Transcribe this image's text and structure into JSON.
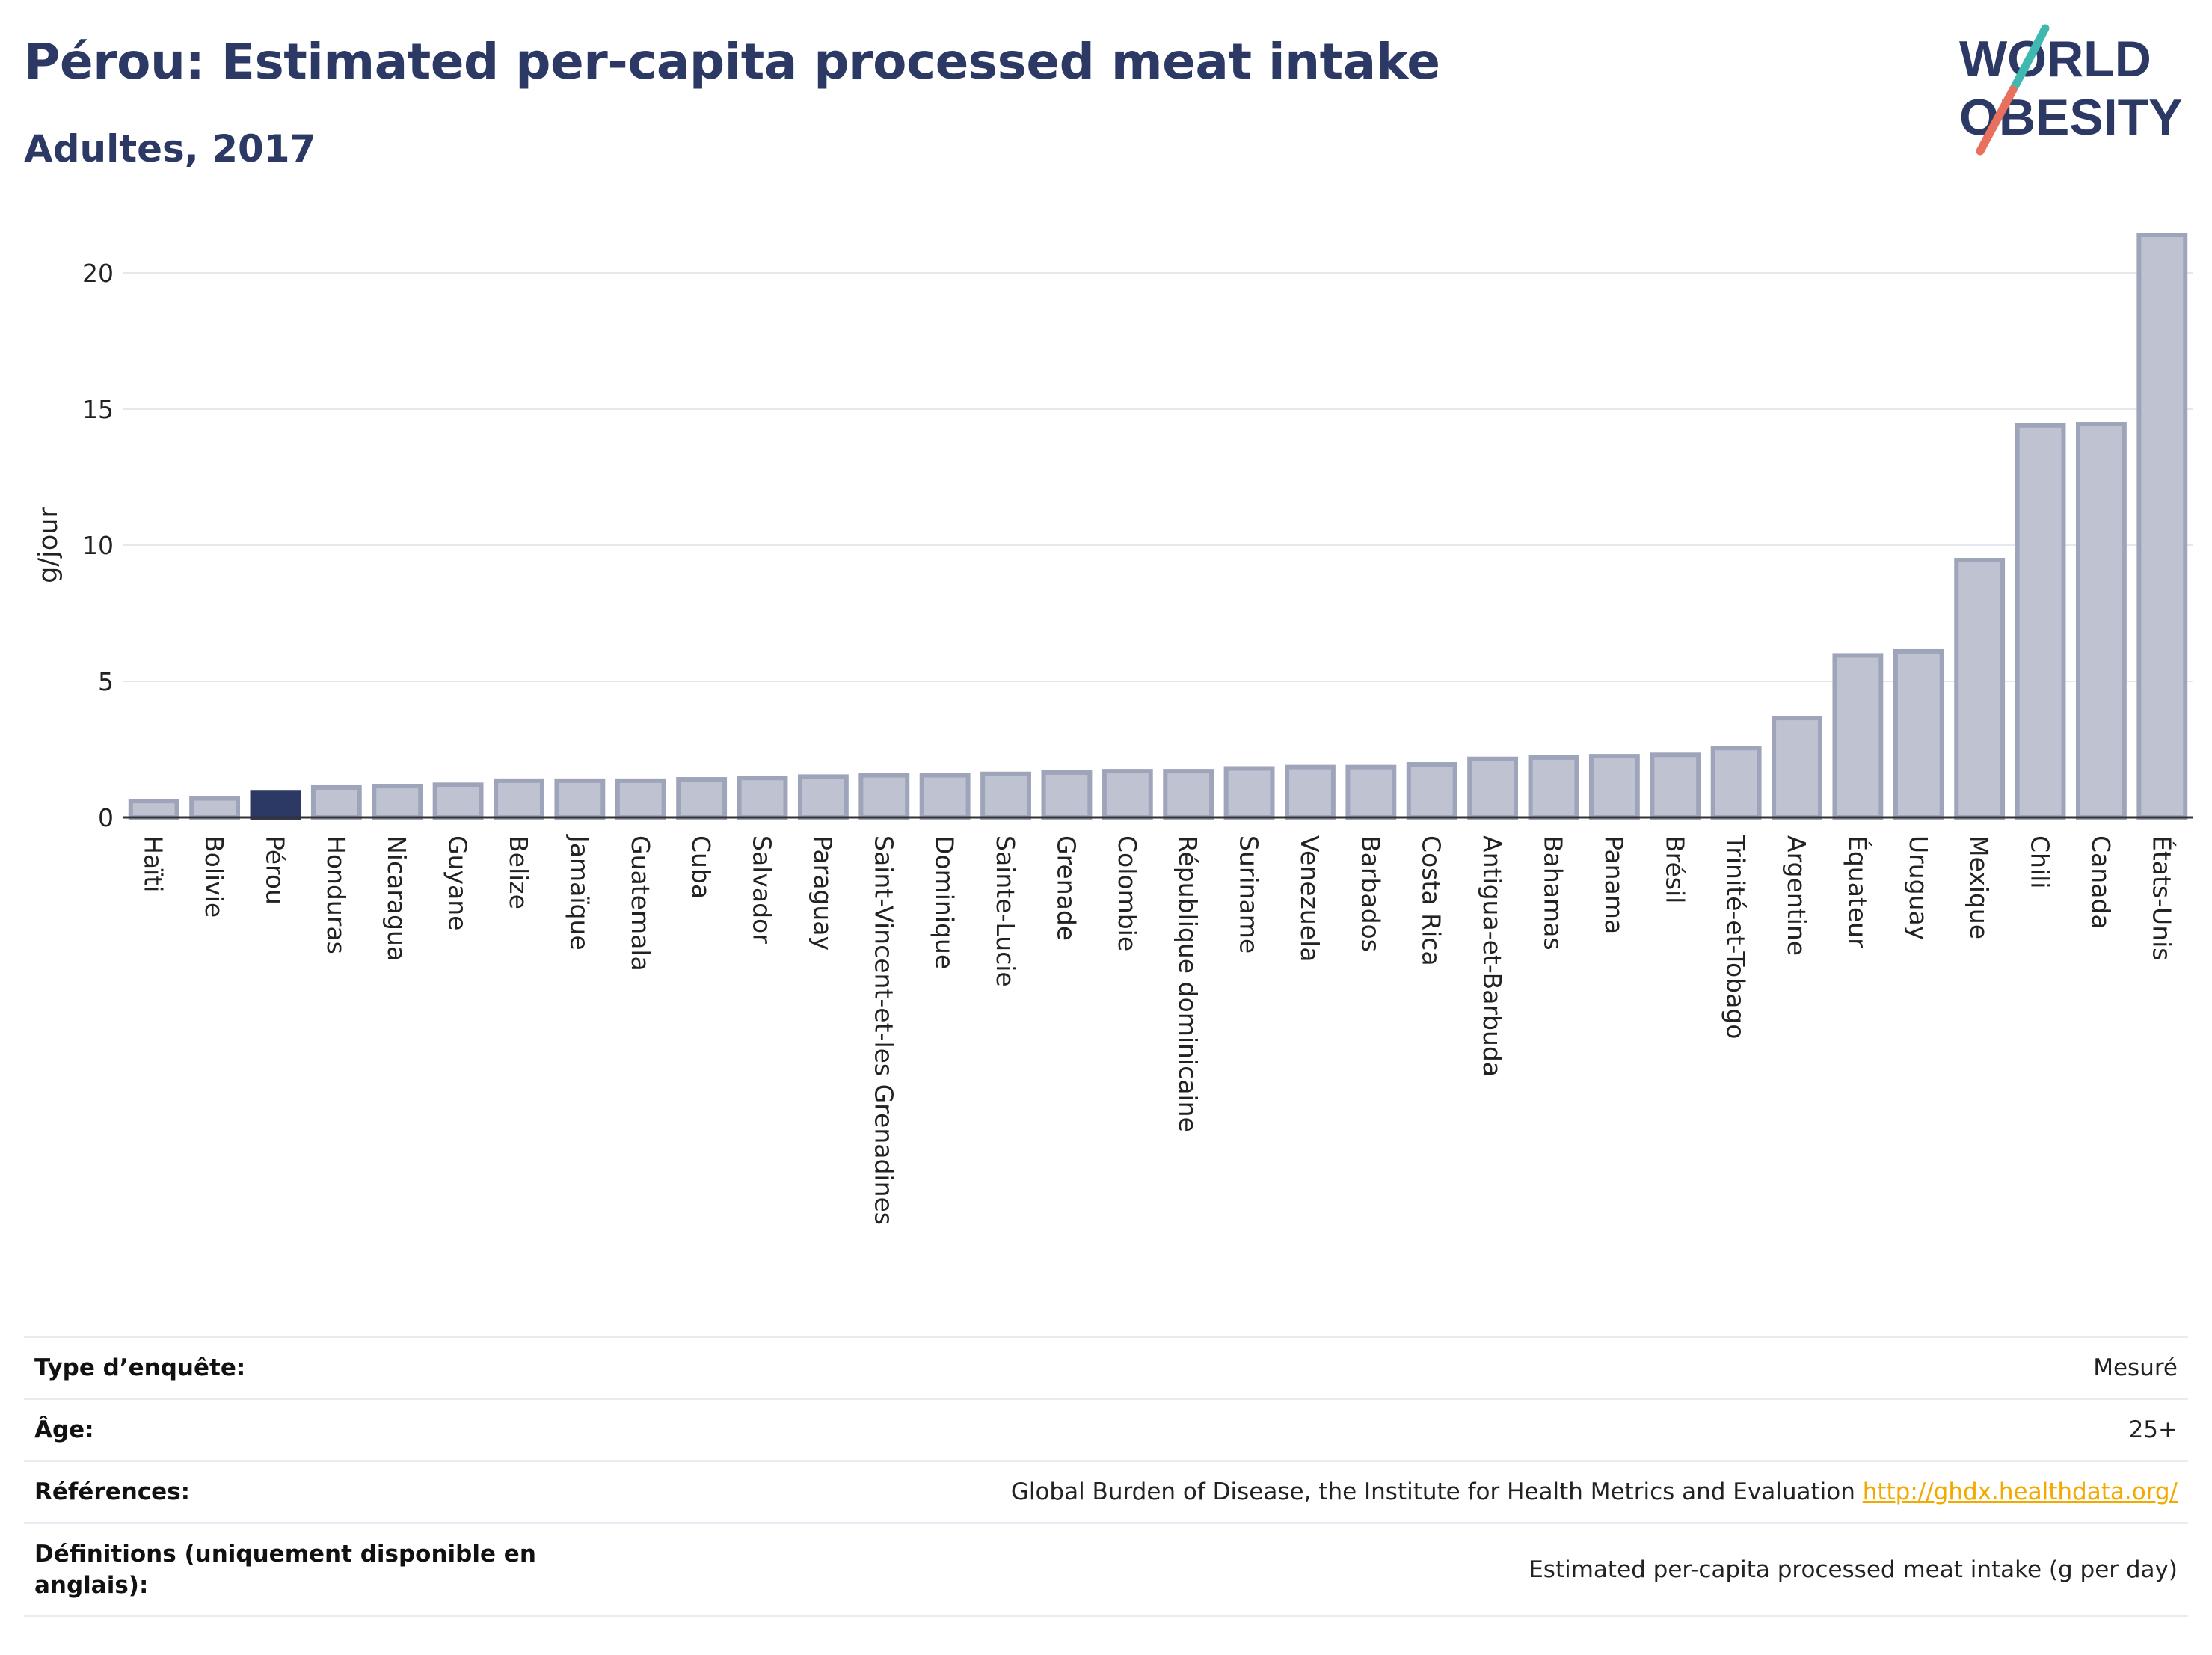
{
  "header": {
    "title": "Pérou: Estimated per-capita processed meat intake",
    "subtitle": "Adultes, 2017"
  },
  "logo": {
    "line1": "WORLD",
    "line2": "OBESITY"
  },
  "colors": {
    "title": "#2b3964",
    "bar": "#bfc3d1",
    "bar_stroke": "#9ea4ba",
    "highlight": "#2b3964",
    "grid": "#e6e8ee",
    "link": "#f2a900"
  },
  "chart_data": {
    "type": "bar",
    "title": "Pérou: Estimated per-capita processed meat intake",
    "subtitle": "Adultes, 2017",
    "xlabel": "",
    "ylabel": "g/jour",
    "ylim": [
      0,
      22
    ],
    "yticks": [
      0,
      5,
      10,
      15,
      20
    ],
    "grid": true,
    "highlight": "Pérou",
    "categories": [
      "Haïti",
      "Bolivie",
      "Pérou",
      "Honduras",
      "Nicaragua",
      "Guyane",
      "Belize",
      "Jamaïque",
      "Guatemala",
      "Cuba",
      "Salvador",
      "Paraguay",
      "Saint-Vincent-et-les Grenadines",
      "Dominique",
      "Sainte-Lucie",
      "Grenade",
      "Colombie",
      "République dominicaine",
      "Suriname",
      "Venezuela",
      "Barbados",
      "Costa Rica",
      "Antigua-et-Barbuda",
      "Bahamas",
      "Panama",
      "Brésil",
      "Trinité-et-Tobago",
      "Argentine",
      "Équateur",
      "Uruguay",
      "Mexique",
      "Chili",
      "Canada",
      "États-Unis"
    ],
    "values": [
      0.6,
      0.7,
      0.9,
      1.1,
      1.15,
      1.2,
      1.35,
      1.35,
      1.35,
      1.4,
      1.45,
      1.5,
      1.55,
      1.55,
      1.6,
      1.65,
      1.7,
      1.7,
      1.8,
      1.85,
      1.85,
      1.95,
      2.15,
      2.2,
      2.25,
      2.3,
      2.55,
      3.65,
      5.95,
      6.1,
      9.45,
      14.4,
      14.45,
      21.4
    ]
  },
  "info_table": {
    "rows": [
      {
        "label": "Type d’enquête:",
        "value": "Mesuré"
      },
      {
        "label": "Âge:",
        "value": "25+"
      },
      {
        "label": "Références:",
        "value": "Global Burden of Disease, the Institute for Health Metrics and Evaluation ",
        "link": "http://ghdx.healthdata.org/"
      },
      {
        "label": "Définitions (uniquement disponible en anglais):",
        "value": "Estimated per-capita processed meat intake (g per day)"
      }
    ]
  }
}
